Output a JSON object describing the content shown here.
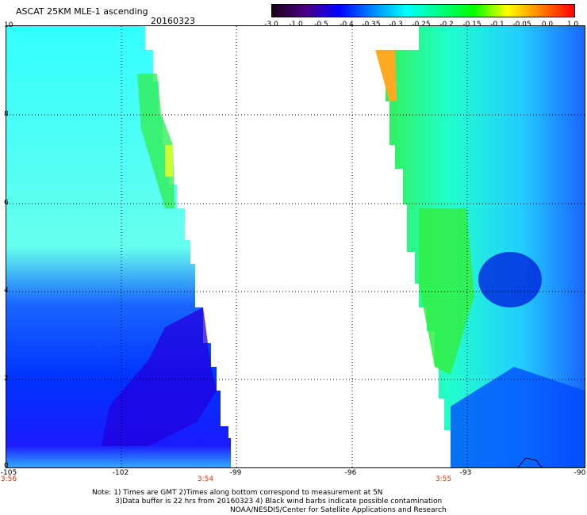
{
  "header": {
    "title": "ASCAT 25KM MLE-1 ascending",
    "date": "20160323"
  },
  "colorbar": {
    "labels": [
      "-3.0",
      "-1.0",
      "-0.5",
      "-0.4",
      "-0.35",
      "-0.3",
      "-0.25",
      "-0.2",
      "-0.15",
      "-0.1",
      "-0.05",
      "0.0",
      "1.0"
    ],
    "colors": [
      "#1a001a",
      "#4b0082",
      "#0000ff",
      "#0088ff",
      "#00ffff",
      "#00ff80",
      "#00ff00",
      "#ffff00",
      "#ff8000",
      "#ff0000"
    ]
  },
  "axes": {
    "y_ticks": [
      "10",
      "8",
      "6",
      "4",
      "2",
      "0"
    ],
    "x_ticks": [
      "-105",
      "-102",
      "-99",
      "-96",
      "-93",
      "-90"
    ],
    "times": [
      "3:56",
      "3:54",
      "3:55"
    ]
  },
  "notes": {
    "line1": "Note: 1) Times are GMT 2)Times along bottom correspond to measurement at 5N",
    "line2": "3)Data buffer is 22 hrs from 20160323 4) Black wind barbs indicate possible contamination",
    "line3": "NOAA/NESDIS/Center for Satellite Applications and Research"
  }
}
